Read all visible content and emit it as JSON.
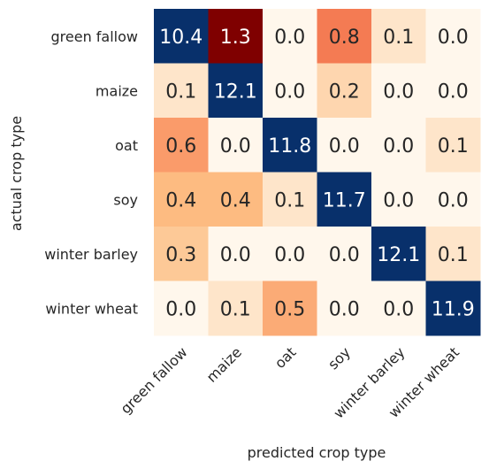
{
  "chart_data": {
    "type": "heatmap",
    "title": "",
    "xlabel": "predicted crop type",
    "ylabel": "actual crop type",
    "x_categories": [
      "green fallow",
      "maize",
      "oat",
      "soy",
      "winter barley",
      "winter wheat"
    ],
    "y_categories": [
      "green fallow",
      "maize",
      "oat",
      "soy",
      "winter barley",
      "winter wheat"
    ],
    "values": [
      [
        10.4,
        1.3,
        0.0,
        0.8,
        0.1,
        0.0
      ],
      [
        0.1,
        12.1,
        0.0,
        0.2,
        0.0,
        0.0
      ],
      [
        0.6,
        0.0,
        11.8,
        0.0,
        0.0,
        0.1
      ],
      [
        0.4,
        0.4,
        0.1,
        11.7,
        0.0,
        0.0
      ],
      [
        0.3,
        0.0,
        0.0,
        0.0,
        12.1,
        0.1
      ],
      [
        0.0,
        0.1,
        0.5,
        0.0,
        0.0,
        11.9
      ]
    ],
    "cell_labels": [
      [
        "10.4",
        "1.3",
        "0.0",
        "0.8",
        "0.1",
        "0.0"
      ],
      [
        "0.1",
        "12.1",
        "0.0",
        "0.2",
        "0.0",
        "0.0"
      ],
      [
        "0.6",
        "0.0",
        "11.8",
        "0.0",
        "0.0",
        "0.1"
      ],
      [
        "0.4",
        "0.4",
        "0.1",
        "11.7",
        "0.0",
        "0.0"
      ],
      [
        "0.3",
        "0.0",
        "0.0",
        "0.0",
        "12.1",
        "0.1"
      ],
      [
        "0.0",
        "0.1",
        "0.5",
        "0.0",
        "0.0",
        "11.9"
      ]
    ],
    "colorbar": false,
    "grid": false,
    "colors": {
      "diagonal": "#08306b",
      "off_diagonal_max": "#7f0000",
      "off_diagonal_mid": "#f87f56",
      "off_diagonal_low": "#fdbf84",
      "off_diagonal_zero": "#fff7ec",
      "light_text": "#ffffff",
      "dark_text": "#262626"
    }
  }
}
